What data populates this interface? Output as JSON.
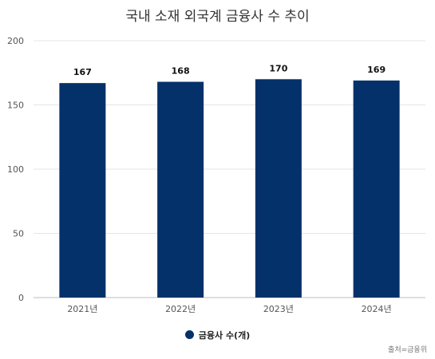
{
  "chart_data": {
    "type": "bar",
    "title": "국내 소재 외국계 금융사 수 추이",
    "categories": [
      "2021년",
      "2022년",
      "2023년",
      "2024년"
    ],
    "series": [
      {
        "name": "금융사 수(개)",
        "values": [
          167,
          168,
          170,
          169
        ]
      }
    ],
    "ylim": [
      0,
      200
    ],
    "yticks": [
      0,
      50,
      100,
      150,
      200
    ],
    "grid": true,
    "legend": "bottom-center",
    "bar_color": "#05316a",
    "source": "출처=금융위"
  }
}
